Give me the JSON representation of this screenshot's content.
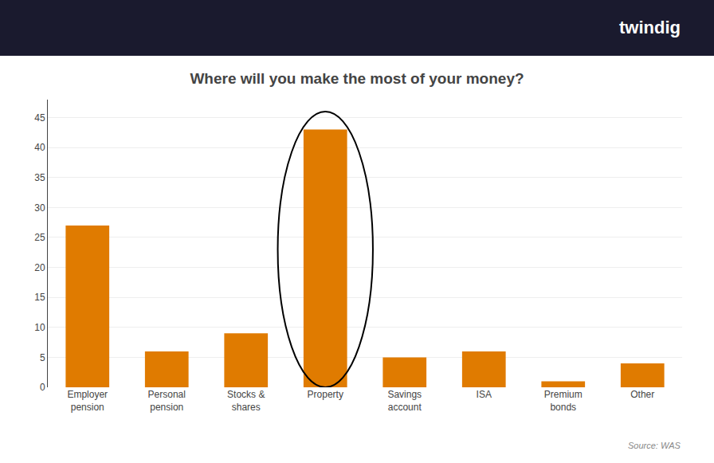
{
  "chart_data": {
    "type": "bar",
    "title": "Where will you make the most of your money?",
    "categories": [
      "Employer\npension",
      "Personal\npension",
      "Stocks &\nshares",
      "Property",
      "Savings\naccount",
      "ISA",
      "Premium\nbonds",
      "Other"
    ],
    "values": [
      27,
      6,
      9,
      43,
      5,
      6,
      1,
      4
    ],
    "color": "#E07B00",
    "ylim": [
      0,
      48
    ],
    "yticks": [
      0,
      5,
      10,
      15,
      20,
      25,
      30,
      35,
      40,
      45
    ],
    "grid": true,
    "annotations": [
      {
        "text": "twindig"
      },
      {
        "text": "Source: WAS"
      }
    ]
  }
}
